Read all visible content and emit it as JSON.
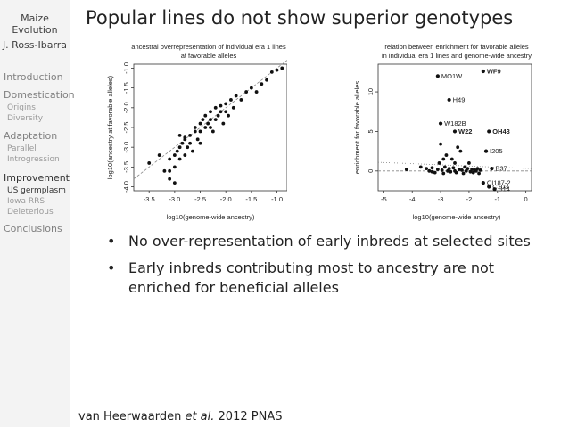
{
  "sidebar": {
    "title_line1": "Maize",
    "title_line2": "Evolution",
    "author": "J. Ross-Ibarra",
    "sections": [
      {
        "label": "Introduction",
        "subs": []
      },
      {
        "label": "Domestication",
        "subs": [
          "Origins",
          "Diversity"
        ]
      },
      {
        "label": "Adaptation",
        "subs": [
          "Parallel",
          "Introgression"
        ]
      },
      {
        "label": "Improvement",
        "subs": [
          "US germplasm",
          "Iowa RRS",
          "Deleterious"
        ]
      },
      {
        "label": "Conclusions",
        "subs": []
      }
    ]
  },
  "frame_title": "Popular lines do not show superior genotypes",
  "bullets": [
    "No over-representation of early inbreds at selected sites",
    "Early inbreds contributing most to ancestry are not enriched for beneficial alleles"
  ],
  "citation": {
    "pre": "van Heerwaarden ",
    "em": "et al.",
    "post": " 2012 PNAS"
  },
  "chart_data": [
    {
      "type": "scatter",
      "title": "ancestral overrepresentation of individual era 1 lines at favorable alleles",
      "title_line1": "ancestral overrepresentation of individual era 1 lines",
      "title_line2": "at favorable alleles",
      "xlabel": "log10(genome-wide ancestry)",
      "ylabel": "log10(ancestry at favorable alleles)",
      "xlim": [
        -3.8,
        -0.8
      ],
      "ylim": [
        -4.1,
        -0.9
      ],
      "xticks": [
        -3.5,
        -3.0,
        -2.5,
        -2.0,
        -1.5,
        -1.0
      ],
      "xtick_labels": [
        "-3.5",
        "-3.0",
        "-2.5",
        "-2.0",
        "-1.5",
        "-1.0"
      ],
      "yticks": [
        -4.0,
        -3.5,
        -3.0,
        -2.5,
        -2.0,
        -1.5,
        -1.0
      ],
      "ytick_labels": [
        "-4.0",
        "-3.5",
        "-3.0",
        "-2.5",
        "-2.0",
        "-1.5",
        "-1.0"
      ],
      "reference_line": {
        "style": "dashed",
        "from": [
          -3.8,
          -3.8
        ],
        "to": [
          -0.8,
          -0.8
        ]
      },
      "points": [
        [
          -3.5,
          -3.4
        ],
        [
          -3.3,
          -3.2
        ],
        [
          -3.2,
          -3.6
        ],
        [
          -3.1,
          -3.3
        ],
        [
          -3.1,
          -3.6
        ],
        [
          -3.1,
          -3.8
        ],
        [
          -3.0,
          -3.5
        ],
        [
          -3.0,
          -3.2
        ],
        [
          -3.0,
          -3.9
        ],
        [
          -2.95,
          -3.1
        ],
        [
          -2.9,
          -3.3
        ],
        [
          -2.9,
          -3.0
        ],
        [
          -2.85,
          -2.9
        ],
        [
          -2.8,
          -3.2
        ],
        [
          -2.8,
          -2.8
        ],
        [
          -2.75,
          -3.0
        ],
        [
          -2.7,
          -2.9
        ],
        [
          -2.7,
          -2.7
        ],
        [
          -2.65,
          -3.1
        ],
        [
          -2.6,
          -2.6
        ],
        [
          -2.6,
          -2.5
        ],
        [
          -2.55,
          -2.8
        ],
        [
          -2.5,
          -2.4
        ],
        [
          -2.5,
          -2.6
        ],
        [
          -2.45,
          -2.3
        ],
        [
          -2.4,
          -2.5
        ],
        [
          -2.4,
          -2.2
        ],
        [
          -2.35,
          -2.4
        ],
        [
          -2.3,
          -2.1
        ],
        [
          -2.3,
          -2.3
        ],
        [
          -2.25,
          -2.6
        ],
        [
          -2.2,
          -2.0
        ],
        [
          -2.2,
          -2.3
        ],
        [
          -2.15,
          -2.2
        ],
        [
          -2.1,
          -2.1
        ],
        [
          -2.1,
          -1.95
        ],
        [
          -2.05,
          -2.4
        ],
        [
          -2.0,
          -2.1
        ],
        [
          -2.0,
          -1.9
        ],
        [
          -1.95,
          -2.2
        ],
        [
          -1.9,
          -1.8
        ],
        [
          -1.85,
          -2.0
        ],
        [
          -1.8,
          -1.7
        ],
        [
          -1.7,
          -1.8
        ],
        [
          -1.6,
          -1.6
        ],
        [
          -1.5,
          -1.5
        ],
        [
          -1.4,
          -1.6
        ],
        [
          -1.3,
          -1.4
        ],
        [
          -1.2,
          -1.3
        ],
        [
          -1.1,
          -1.1
        ],
        [
          -1.0,
          -1.05
        ],
        [
          -0.9,
          -1.0
        ],
        [
          -2.8,
          -2.75
        ],
        [
          -2.5,
          -2.9
        ],
        [
          -2.3,
          -2.5
        ],
        [
          -2.9,
          -2.7
        ]
      ]
    },
    {
      "type": "scatter",
      "title": "relation between enrichment for favorable alleles in individual era 1 lines and genome-wide ancestry",
      "title_line1": "relation between enrichment for favorable alleles",
      "title_line2": "in individual era 1 lines and genome-wide ancestry",
      "xlabel": "log10(genome-wide ancestry)",
      "ylabel": "enrichment for favorable alleles",
      "xlim": [
        -5.2,
        0.2
      ],
      "ylim": [
        -2.5,
        13.5
      ],
      "xticks": [
        -5,
        -4,
        -3,
        -2,
        -1,
        0
      ],
      "xtick_labels": [
        "-5",
        "-4",
        "-3",
        "-2",
        "-1",
        "0"
      ],
      "yticks": [
        0,
        5,
        10
      ],
      "ytick_labels": [
        "0",
        "5",
        "10"
      ],
      "reference_lines": [
        {
          "style": "dashed",
          "from": [
            -5.2,
            0
          ],
          "to": [
            0.2,
            0
          ]
        },
        {
          "style": "dotted",
          "from": [
            -5.2,
            1.1
          ],
          "to": [
            0.2,
            0.3
          ]
        }
      ],
      "labeled_points": [
        {
          "x": -3.1,
          "y": 12.0,
          "label": "MO1W",
          "bold": false
        },
        {
          "x": -1.5,
          "y": 12.6,
          "label": "WF9",
          "bold": true
        },
        {
          "x": -2.7,
          "y": 9.0,
          "label": "H49",
          "bold": false
        },
        {
          "x": -3.0,
          "y": 6.0,
          "label": "W182B",
          "bold": false
        },
        {
          "x": -2.5,
          "y": 5.0,
          "label": "W22",
          "bold": true
        },
        {
          "x": -1.3,
          "y": 5.0,
          "label": "OH43",
          "bold": true
        },
        {
          "x": -1.4,
          "y": 2.5,
          "label": "I205",
          "bold": false
        },
        {
          "x": -1.2,
          "y": 0.3,
          "label": "B37",
          "bold": false
        },
        {
          "x": -1.5,
          "y": -1.5,
          "label": "CI187-2",
          "bold": false
        },
        {
          "x": -1.3,
          "y": -2.0,
          "label": "C103",
          "bold": false
        },
        {
          "x": -1.1,
          "y": -2.3,
          "label": "B14",
          "bold": false
        }
      ],
      "points": [
        [
          -4.2,
          0.2
        ],
        [
          -3.7,
          0.5
        ],
        [
          -3.5,
          0.3
        ],
        [
          -3.4,
          0.0
        ],
        [
          -3.3,
          0.4
        ],
        [
          -3.2,
          -0.2
        ],
        [
          -3.1,
          0.2
        ],
        [
          -3.05,
          1.0
        ],
        [
          -3.0,
          3.4
        ],
        [
          -2.95,
          0.1
        ],
        [
          -2.9,
          -0.3
        ],
        [
          -2.85,
          0.5
        ],
        [
          -2.8,
          2.0
        ],
        [
          -2.75,
          0.0
        ],
        [
          -2.7,
          0.3
        ],
        [
          -2.65,
          -0.1
        ],
        [
          -2.6,
          1.5
        ],
        [
          -2.55,
          0.4
        ],
        [
          -2.5,
          0.0
        ],
        [
          -2.45,
          -0.2
        ],
        [
          -2.4,
          3.0
        ],
        [
          -2.35,
          0.2
        ],
        [
          -2.3,
          2.5
        ],
        [
          -2.25,
          0.1
        ],
        [
          -2.2,
          -0.3
        ],
        [
          -2.15,
          0.5
        ],
        [
          -2.1,
          0.0
        ],
        [
          -2.05,
          0.3
        ],
        [
          -2.0,
          1.0
        ],
        [
          -1.95,
          -0.1
        ],
        [
          -1.9,
          0.2
        ],
        [
          -1.85,
          -0.2
        ],
        [
          -1.8,
          0.1
        ],
        [
          -1.75,
          0.0
        ],
        [
          -1.7,
          0.3
        ],
        [
          -1.65,
          -0.3
        ],
        [
          -1.6,
          0.1
        ],
        [
          -2.9,
          1.5
        ],
        [
          -2.5,
          1.0
        ],
        [
          -3.3,
          -0.1
        ]
      ]
    }
  ]
}
